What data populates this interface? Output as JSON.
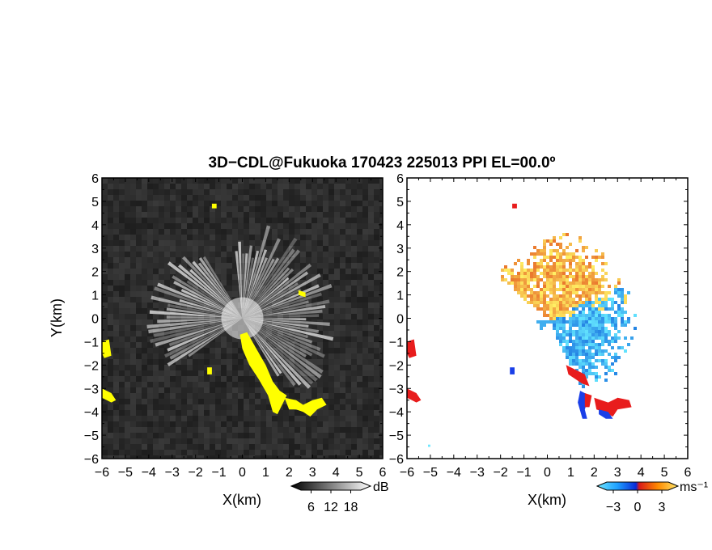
{
  "chart_data": {
    "type": "heatmap",
    "title": "3D−CDL@Fukuoka 170423 225013 PPI EL=00.0º",
    "panels": [
      {
        "id": "snr",
        "xlabel": "X(km)",
        "ylabel": "Y(km)",
        "xlim": [
          -6,
          6
        ],
        "ylim": [
          -6,
          6
        ],
        "x_ticks": [
          "−6",
          "−5",
          "−4",
          "−3",
          "−2",
          "−1",
          "0",
          "1",
          "2",
          "3",
          "4",
          "5",
          "6"
        ],
        "y_ticks": [
          "−6",
          "−5",
          "−4",
          "−3",
          "−2",
          "−1",
          "0",
          "1",
          "2",
          "3",
          "4",
          "5",
          "6"
        ],
        "background_color": "#262626",
        "highlight_color": "#ffff00",
        "colorbar": {
          "unit": "dB",
          "ticks": [
            "6",
            "12",
            "18"
          ],
          "range": [
            0,
            24
          ]
        }
      },
      {
        "id": "velocity",
        "xlabel": "X(km)",
        "ylabel": "",
        "xlim": [
          -6,
          6
        ],
        "ylim": [
          -6,
          6
        ],
        "x_ticks": [
          "−6",
          "−5",
          "−4",
          "−3",
          "−2",
          "−1",
          "0",
          "1",
          "2",
          "3",
          "4",
          "5",
          "6"
        ],
        "y_ticks": [
          "−6",
          "−5",
          "−4",
          "−3",
          "−2",
          "−1",
          "0",
          "1",
          "2",
          "3",
          "4",
          "5",
          "6"
        ],
        "background_color": "#ffffff",
        "colorbar": {
          "unit": "ms⁻¹",
          "ticks": [
            "−3",
            "0",
            "3"
          ],
          "range": [
            -5,
            5
          ]
        }
      }
    ]
  }
}
